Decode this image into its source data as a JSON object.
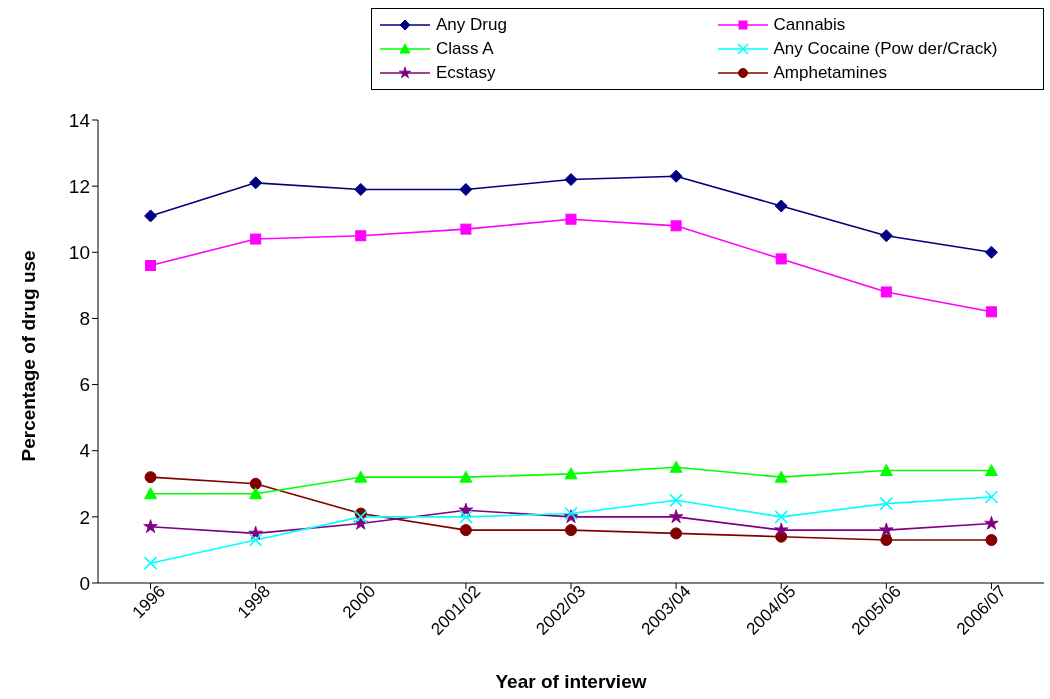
{
  "chart_data": {
    "type": "line",
    "xlabel": "Year of interview",
    "ylabel": "Percentage of drug use",
    "categories": [
      "1996",
      "1998",
      "2000",
      "2001/02",
      "2002/03",
      "2003/04",
      "2004/05",
      "2005/06",
      "2006/07"
    ],
    "series": [
      {
        "name": "Any Drug",
        "color": "#000080",
        "marker": "diamond",
        "values": [
          11.1,
          12.1,
          11.9,
          11.9,
          12.2,
          12.3,
          11.4,
          10.5,
          10.0
        ]
      },
      {
        "name": "Cannabis",
        "color": "#ff00ff",
        "marker": "square",
        "values": [
          9.6,
          10.4,
          10.5,
          10.7,
          11.0,
          10.8,
          9.8,
          8.8,
          8.2
        ]
      },
      {
        "name": "Class A",
        "color": "#00ff00",
        "marker": "triangle",
        "values": [
          2.7,
          2.7,
          3.2,
          3.2,
          3.3,
          3.5,
          3.2,
          3.4,
          3.4
        ]
      },
      {
        "name": "Any Cocaine (Pow der/Crack)",
        "color": "#00ffff",
        "marker": "cross",
        "values": [
          0.6,
          1.3,
          2.0,
          2.0,
          2.1,
          2.5,
          2.0,
          2.4,
          2.6
        ]
      },
      {
        "name": "Ecstasy",
        "color": "#800080",
        "marker": "star",
        "values": [
          1.7,
          1.5,
          1.8,
          2.2,
          2.0,
          2.0,
          1.6,
          1.6,
          1.8
        ]
      },
      {
        "name": "Amphetamines",
        "color": "#800000",
        "marker": "circle",
        "values": [
          3.2,
          3.0,
          2.1,
          1.6,
          1.6,
          1.5,
          1.4,
          1.3,
          1.3
        ]
      }
    ],
    "ylim": [
      0,
      14
    ],
    "yticks": [
      0,
      2,
      4,
      6,
      8,
      10,
      12,
      14
    ],
    "grid": false,
    "legend": "top right",
    "line_style": "solid"
  }
}
